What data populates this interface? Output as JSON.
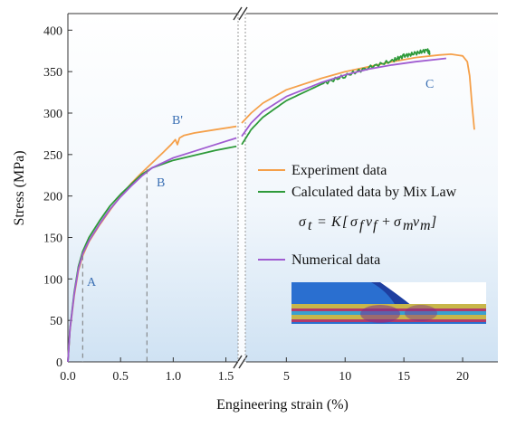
{
  "chart_data": {
    "type": "line",
    "xlabel": "Engineering strain (%)",
    "ylabel": "Stress (MPa)",
    "ylim": [
      0,
      420
    ],
    "x_axis": {
      "broken": true,
      "left_segment": {
        "range": [
          0,
          1.65
        ],
        "ticks": [
          "0.0",
          "0.5",
          "1.0",
          "1.5"
        ]
      },
      "right_segment": {
        "range": [
          1.2,
          23
        ],
        "ticks": [
          "5",
          "10",
          "15",
          "20"
        ]
      }
    },
    "y_ticks": [
      "0",
      "50",
      "100",
      "150",
      "200",
      "250",
      "300",
      "350",
      "400"
    ],
    "legend_placement": "center-right",
    "series": [
      {
        "name": "Experiment data",
        "color": "#f5a04a",
        "left": {
          "x": [
            0.0,
            0.02,
            0.06,
            0.1,
            0.14,
            0.2,
            0.3,
            0.4,
            0.5,
            0.6,
            0.7,
            0.8,
            0.9,
            0.98,
            1.02,
            1.04,
            1.06,
            1.1,
            1.2,
            1.4,
            1.6
          ],
          "y": [
            0,
            38,
            80,
            110,
            128,
            145,
            165,
            183,
            200,
            215,
            228,
            240,
            252,
            262,
            268,
            262,
            270,
            273,
            276,
            280,
            284
          ]
        },
        "right": {
          "x": [
            1.2,
            2,
            3,
            5,
            8,
            10,
            12,
            14,
            16,
            18,
            19,
            20,
            20.4,
            20.6,
            20.8,
            21.0
          ],
          "y": [
            288,
            300,
            312,
            328,
            342,
            350,
            356,
            362,
            367,
            370,
            371,
            369,
            362,
            345,
            310,
            280
          ]
        }
      },
      {
        "name": "Calculated data by Mix Law",
        "color": "#2e9a3a",
        "left": {
          "x": [
            0.0,
            0.02,
            0.06,
            0.1,
            0.14,
            0.2,
            0.3,
            0.4,
            0.5,
            0.6,
            0.7,
            0.8,
            1.0,
            1.2,
            1.4,
            1.6
          ],
          "y": [
            0,
            40,
            84,
            115,
            133,
            150,
            170,
            188,
            202,
            214,
            226,
            234,
            243,
            249,
            255,
            260
          ]
        },
        "right": {
          "x": [
            1.2,
            2,
            3,
            5,
            8,
            10,
            12,
            14,
            15,
            16,
            17,
            17.2
          ],
          "y": [
            262,
            280,
            295,
            315,
            335,
            345,
            355,
            363,
            369,
            372,
            376,
            372
          ]
        }
      },
      {
        "name": "Numerical data",
        "color": "#a05cd1",
        "left": {
          "x": [
            0.0,
            0.02,
            0.06,
            0.1,
            0.14,
            0.2,
            0.3,
            0.4,
            0.5,
            0.6,
            0.7,
            0.8,
            1.0,
            1.2,
            1.4,
            1.6
          ],
          "y": [
            0,
            39,
            82,
            112,
            130,
            146,
            166,
            184,
            199,
            212,
            224,
            234,
            246,
            254,
            262,
            270
          ]
        },
        "right": {
          "x": [
            1.2,
            2,
            3,
            5,
            8,
            10,
            12,
            14,
            16,
            18,
            18.6
          ],
          "y": [
            272,
            288,
            302,
            320,
            337,
            346,
            353,
            358,
            362,
            365,
            366
          ]
        }
      }
    ],
    "annotations": [
      {
        "text": "A",
        "x": 0.14,
        "y": 100
      },
      {
        "text": "B",
        "x": 0.75,
        "y": 215
      },
      {
        "text": "B'",
        "x": 1.0,
        "y": 290
      },
      {
        "text": "C",
        "x": 17.0,
        "y": 330
      }
    ],
    "formula": "σt = K[σf vf + σm vm]"
  }
}
